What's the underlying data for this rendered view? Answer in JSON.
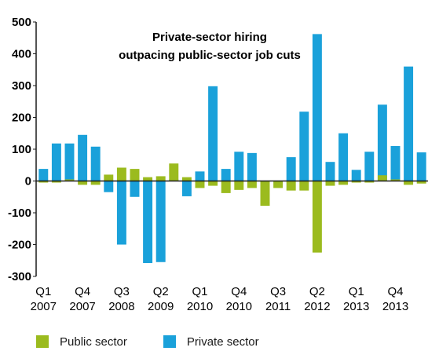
{
  "chart_data": {
    "type": "bar",
    "title": "Private-sector hiring\noutpacing public-sector job cuts",
    "xlabel": "",
    "ylabel": "",
    "ylim": [
      -300,
      500
    ],
    "yticks": [
      -300,
      -200,
      -100,
      0,
      100,
      200,
      300,
      400,
      500
    ],
    "xtick_labels": [
      {
        "q": "Q1",
        "y": "2007"
      },
      {
        "q": "Q4",
        "y": "2007"
      },
      {
        "q": "Q3",
        "y": "2008"
      },
      {
        "q": "Q2",
        "y": "2009"
      },
      {
        "q": "Q1",
        "y": "2010"
      },
      {
        "q": "Q4",
        "y": "2010"
      },
      {
        "q": "Q3",
        "y": "2011"
      },
      {
        "q": "Q2",
        "y": "2012"
      },
      {
        "q": "Q1",
        "y": "2013"
      },
      {
        "q": "Q4",
        "y": "2013"
      }
    ],
    "legend_position": "bottom",
    "series": [
      {
        "name": "Public sector",
        "color": "#9bbb1e",
        "values": [
          -5,
          -5,
          5,
          -12,
          -12,
          20,
          42,
          38,
          12,
          15,
          55,
          12,
          -22,
          -15,
          -38,
          -28,
          -22,
          -78,
          -22,
          -30,
          -30,
          -225,
          -15,
          -12,
          -5,
          -5,
          18,
          5,
          -12,
          -8
        ]
      },
      {
        "name": "Private sector",
        "color": "#1aa1da",
        "values": [
          38,
          118,
          118,
          145,
          108,
          -35,
          -200,
          -50,
          -258,
          -255,
          5,
          -48,
          30,
          298,
          38,
          92,
          88,
          0,
          0,
          75,
          218,
          462,
          60,
          150,
          35,
          92,
          240,
          110,
          360,
          90
        ]
      }
    ]
  }
}
